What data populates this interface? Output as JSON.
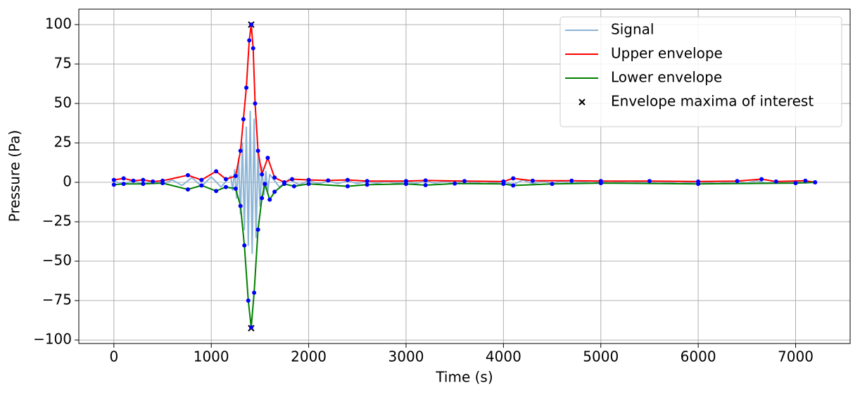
{
  "chart_data": {
    "type": "line",
    "xlabel": "Time (s)",
    "ylabel": "Pressure (Pa)",
    "xlim": [
      -360,
      7560
    ],
    "ylim": [
      -102.2,
      109.8
    ],
    "xticks": [
      0,
      1000,
      2000,
      3000,
      4000,
      5000,
      6000,
      7000
    ],
    "yticks": [
      {
        "value": -100,
        "label": "−100"
      },
      {
        "value": -75,
        "label": "−75"
      },
      {
        "value": -50,
        "label": "−50"
      },
      {
        "value": -25,
        "label": "−25"
      },
      0,
      25,
      50,
      75,
      100
    ],
    "grid": true,
    "legend": "upper right",
    "knot_color": "#0000ff",
    "series": [
      {
        "name": "Signal",
        "color": "#8cb4d6",
        "kind": "line",
        "x": [
          0,
          100,
          200,
          300,
          400,
          500,
          600,
          700,
          800,
          900,
          1000,
          1100,
          1200,
          1220,
          1240,
          1260,
          1280,
          1300,
          1320,
          1340,
          1360,
          1380,
          1400,
          1420,
          1440,
          1460,
          1480,
          1500,
          1520,
          1540,
          1560,
          1580,
          1600,
          1700,
          1800,
          1900,
          2000,
          2100,
          2200,
          2300,
          2400,
          2500,
          2600,
          2700,
          2800,
          2900,
          3000,
          3100,
          3200,
          3300,
          3400,
          3500,
          3600,
          3700,
          3800,
          3900,
          4000,
          4100,
          4200,
          4300,
          4400,
          4500,
          4600,
          4700,
          4800,
          4900,
          5000,
          5100,
          5200,
          5300,
          5400,
          5500,
          5600,
          5700,
          5800,
          5900,
          6000,
          6100,
          6200,
          6300,
          6400,
          6500,
          6600,
          6700,
          6800,
          6900,
          7000,
          7100,
          7200
        ],
        "values": [
          0.5,
          -0.8,
          1,
          -1,
          0.8,
          -1,
          1.5,
          -2,
          3,
          -2.5,
          3.5,
          -3,
          4,
          -5,
          8,
          -10,
          15,
          -20,
          25,
          -30,
          35,
          -40,
          45,
          -45,
          40,
          -35,
          20,
          -15,
          10,
          -8,
          7,
          -6,
          5,
          -3,
          2,
          -1.5,
          1,
          -0.8,
          0.8,
          -0.8,
          1,
          -0.8,
          0.6,
          -0.6,
          0.6,
          -0.6,
          0.5,
          -0.6,
          0.8,
          -0.5,
          0.5,
          -0.5,
          0.6,
          -0.5,
          0.5,
          -0.5,
          0.5,
          -1.5,
          1.5,
          -0.8,
          0.6,
          -0.5,
          0.5,
          -0.5,
          0.4,
          -0.4,
          0.4,
          -0.4,
          0.4,
          -0.4,
          0.4,
          -0.4,
          0.4,
          -0.4,
          0.4,
          -0.4,
          0.4,
          -0.4,
          0.4,
          -0.4,
          0.4,
          -0.4,
          1,
          -0.5,
          0.4,
          -0.4,
          0.4,
          -0.4,
          0
        ]
      },
      {
        "name": "Upper envelope",
        "color": "#ff0000",
        "kind": "line",
        "x": [
          0,
          100,
          200,
          300,
          400,
          500,
          760,
          900,
          1050,
          1150,
          1250,
          1300,
          1330,
          1360,
          1390,
          1410,
          1430,
          1450,
          1480,
          1520,
          1580,
          1650,
          1750,
          1830,
          2000,
          2200,
          2400,
          2600,
          3000,
          3200,
          3600,
          4000,
          4100,
          4300,
          4700,
          5000,
          5500,
          6000,
          6400,
          6650,
          6800,
          7100,
          7200
        ],
        "values": [
          1.5,
          2.5,
          1,
          1.5,
          0.5,
          1,
          4.5,
          1.5,
          7,
          2,
          4,
          20,
          40,
          60,
          90,
          100,
          85,
          50,
          20,
          5,
          15.5,
          3,
          0,
          2,
          1.5,
          1.2,
          1.5,
          0.8,
          0.8,
          1.2,
          0.8,
          0.5,
          2.5,
          1,
          1,
          0.8,
          0.8,
          0.5,
          0.8,
          2,
          0.5,
          1,
          0
        ]
      },
      {
        "name": "Lower envelope",
        "color": "#008000",
        "kind": "line",
        "x": [
          0,
          100,
          300,
          500,
          760,
          900,
          1050,
          1150,
          1250,
          1300,
          1340,
          1380,
          1410,
          1440,
          1480,
          1520,
          1550,
          1600,
          1650,
          1750,
          1850,
          2000,
          2400,
          2600,
          3000,
          3200,
          3500,
          4000,
          4100,
          4500,
          5000,
          6000,
          7000,
          7200
        ],
        "values": [
          -1.5,
          -1,
          -1,
          -0.5,
          -4.5,
          -2,
          -5.5,
          -3,
          -4,
          -15,
          -40,
          -75,
          -92,
          -70,
          -30,
          -10,
          -1,
          -11,
          -6,
          -1,
          -2.5,
          -1,
          -2.5,
          -1.5,
          -1,
          -1.8,
          -0.8,
          -1,
          -2,
          -1,
          -0.5,
          -1,
          -0.5,
          0
        ]
      },
      {
        "name": "Envelope maxima of interest",
        "color": "#000000",
        "kind": "scatter",
        "x": [
          1410,
          1410
        ],
        "values": [
          100,
          -92.5
        ]
      }
    ]
  }
}
